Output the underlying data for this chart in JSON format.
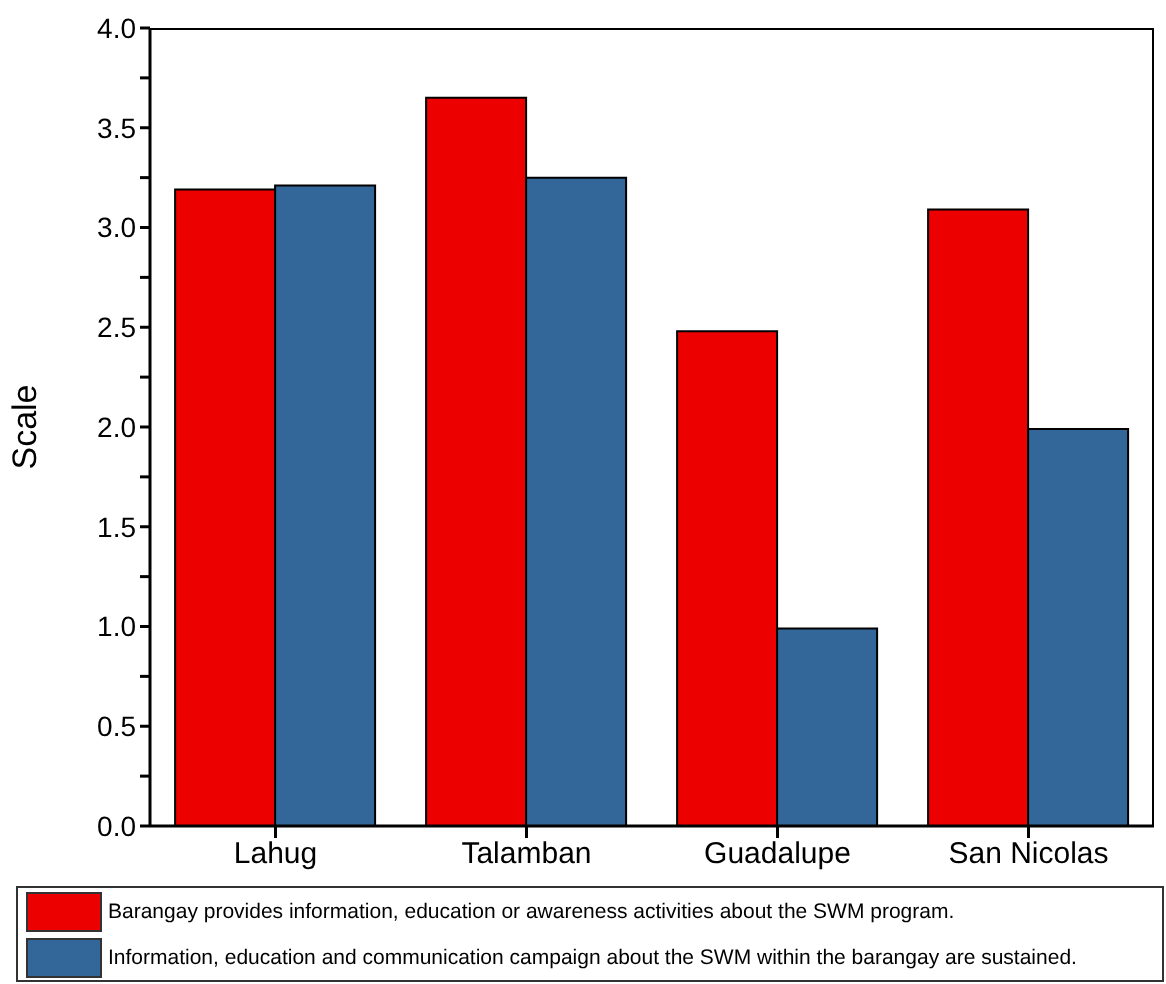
{
  "chart_data": {
    "type": "bar",
    "ylabel": "Scale",
    "categories": [
      "Lahug",
      "Talamban",
      "Guadalupe",
      "San Nicolas"
    ],
    "series": [
      {
        "name": "Barangay provides information, education or awareness activities about the SWM program.",
        "color": "#ec0000",
        "values": [
          3.19,
          3.65,
          2.48,
          3.09
        ]
      },
      {
        "name": "Information, education and communication campaign about the SWM within the barangay are sustained.",
        "color": "#336699",
        "values": [
          3.21,
          3.25,
          0.99,
          1.99
        ]
      }
    ],
    "ylim": [
      0,
      4
    ],
    "yticks": [
      {
        "value": 0,
        "label": "0.0"
      },
      {
        "value": 0.25,
        "label": null
      },
      {
        "value": 0.5,
        "label": "0.5"
      },
      {
        "value": 0.75,
        "label": null
      },
      {
        "value": 1,
        "label": "1.0"
      },
      {
        "value": 1.25,
        "label": null
      },
      {
        "value": 1.5,
        "label": "1.5"
      },
      {
        "value": 1.75,
        "label": null
      },
      {
        "value": 2,
        "label": "2.0"
      },
      {
        "value": 2.25,
        "label": null
      },
      {
        "value": 2.5,
        "label": "2.5"
      },
      {
        "value": 2.75,
        "label": null
      },
      {
        "value": 3,
        "label": "3.0"
      },
      {
        "value": 3.25,
        "label": null
      },
      {
        "value": 3.5,
        "label": "3.5"
      },
      {
        "value": 3.75,
        "label": null
      },
      {
        "value": 4,
        "label": "4.0"
      }
    ],
    "legend": "bottom"
  }
}
